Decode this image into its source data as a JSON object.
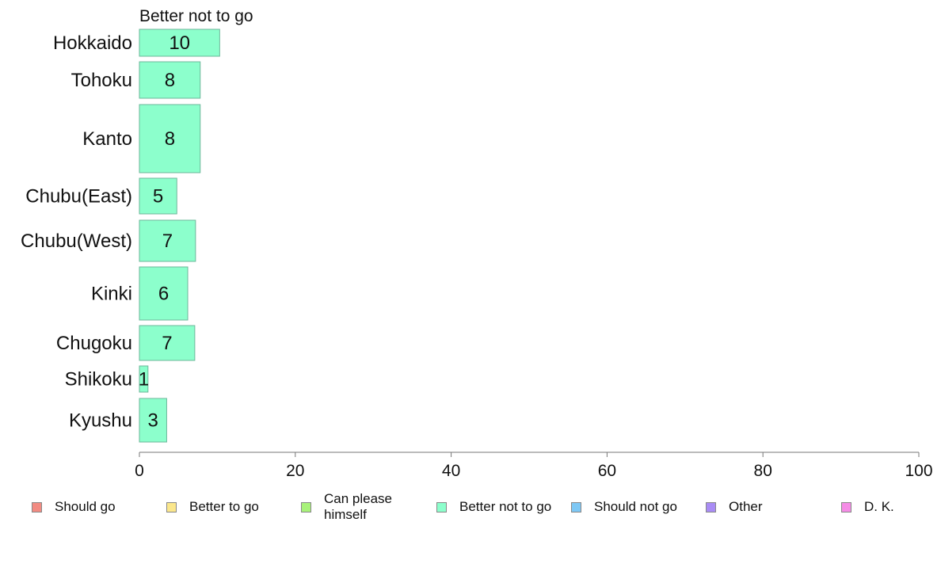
{
  "chart_data": {
    "type": "bar",
    "orientation": "horizontal",
    "title": "Better not to go",
    "categories": [
      "Hokkaido",
      "Tohoku",
      "Kanto",
      "Chubu(East)",
      "Chubu(West)",
      "Kinki",
      "Chugoku",
      "Shikoku",
      "Kyushu"
    ],
    "values": [
      10,
      8,
      8,
      5,
      7,
      6,
      7,
      1,
      3
    ],
    "bar_values_estimated": [
      10.3,
      7.8,
      7.8,
      4.8,
      7.2,
      6.2,
      7.1,
      1.1,
      3.5
    ],
    "series": [
      {
        "name": "Better not to go",
        "values": [
          10,
          8,
          8,
          5,
          7,
          6,
          7,
          1,
          3
        ]
      }
    ],
    "xlim": [
      0,
      100
    ],
    "xticks": [
      0,
      20,
      40,
      60,
      80,
      100
    ],
    "xlabel": "",
    "ylabel": "",
    "grid": false,
    "bar_color": "#8cffcc",
    "bar_border": "#6cb79a",
    "legend_position": "bottom",
    "legend": [
      {
        "label": "Should go",
        "color": "#f28b82"
      },
      {
        "label": "Better to go",
        "color": "#fbe78c"
      },
      {
        "label": "Can please himself",
        "color": "#a8f27a"
      },
      {
        "label": "Better not to go",
        "color": "#8cffcc"
      },
      {
        "label": "Should not go",
        "color": "#7ec8f5"
      },
      {
        "label": "Other",
        "color": "#a98cf5"
      },
      {
        "label": "D. K.",
        "color": "#f58ce6"
      }
    ]
  }
}
